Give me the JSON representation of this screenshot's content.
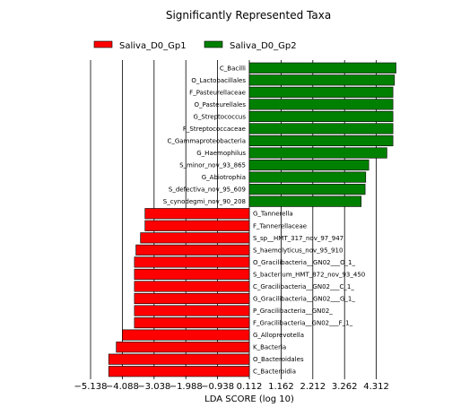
{
  "chart_data": {
    "type": "bar",
    "orientation": "horizontal",
    "title": "Significantly Represented Taxa",
    "xlabel": "LDA SCORE (log 10)",
    "ylabel": "",
    "xlim": [
      -5.138,
      5.362
    ],
    "xticks": [
      "-5.138",
      "-4.088",
      "-3.038",
      "-1.988",
      "-0.938",
      "0.112",
      "1.162",
      "2.212",
      "3.262",
      "4.312"
    ],
    "grid": "vertical lines",
    "legend_position": "top",
    "series": [
      {
        "name": "Saliva_D0_Gp1",
        "color": "#ff0000"
      },
      {
        "name": "Saliva_D0_Gp2",
        "color": "#008000"
      }
    ],
    "bars": [
      {
        "label": "C_Bacilli",
        "value": 4.85,
        "group": "Saliva_D0_Gp2"
      },
      {
        "label": "O_Lactobacillales",
        "value": 4.8,
        "group": "Saliva_D0_Gp2"
      },
      {
        "label": "F_Pasteurellaceae",
        "value": 4.75,
        "group": "Saliva_D0_Gp2"
      },
      {
        "label": "O_Pasteurellales",
        "value": 4.75,
        "group": "Saliva_D0_Gp2"
      },
      {
        "label": "G_Streptococcus",
        "value": 4.75,
        "group": "Saliva_D0_Gp2"
      },
      {
        "label": "F_Streptococcaceae",
        "value": 4.75,
        "group": "Saliva_D0_Gp2"
      },
      {
        "label": "C_Gammaproteobacteria",
        "value": 4.75,
        "group": "Saliva_D0_Gp2"
      },
      {
        "label": "G_Haemophilus",
        "value": 4.55,
        "group": "Saliva_D0_Gp2"
      },
      {
        "label": "S_minor_nov_93_865",
        "value": 3.95,
        "group": "Saliva_D0_Gp2"
      },
      {
        "label": "G_Abiotrophia",
        "value": 3.85,
        "group": "Saliva_D0_Gp2"
      },
      {
        "label": "S_defectiva_nov_95_609",
        "value": 3.83,
        "group": "Saliva_D0_Gp2"
      },
      {
        "label": "S_cynodegmi_nov_90_208",
        "value": 3.7,
        "group": "Saliva_D0_Gp2"
      },
      {
        "label": "G_Tannerella",
        "value": -3.45,
        "group": "Saliva_D0_Gp1"
      },
      {
        "label": "F_Tannerellaceae",
        "value": -3.45,
        "group": "Saliva_D0_Gp1"
      },
      {
        "label": "S_sp__HMT_317_nov_97_947",
        "value": -3.6,
        "group": "Saliva_D0_Gp1"
      },
      {
        "label": "S_haemolyticus_nov_95_910",
        "value": -3.75,
        "group": "Saliva_D0_Gp1"
      },
      {
        "label": "O_Gracilibacteria__GN02___O_1_",
        "value": -3.8,
        "group": "Saliva_D0_Gp1"
      },
      {
        "label": "S_bacterium_HMT_872_nov_93_450",
        "value": -3.8,
        "group": "Saliva_D0_Gp1"
      },
      {
        "label": "C_Gracilibacteria__GN02___C_1_",
        "value": -3.8,
        "group": "Saliva_D0_Gp1"
      },
      {
        "label": "G_Gracilibacteria__GN02___G_1_",
        "value": -3.8,
        "group": "Saliva_D0_Gp1"
      },
      {
        "label": "P_Gracilibacteria__GN02_",
        "value": -3.8,
        "group": "Saliva_D0_Gp1"
      },
      {
        "label": "F_Gracilibacteria__GN02___F_1_",
        "value": -3.8,
        "group": "Saliva_D0_Gp1"
      },
      {
        "label": "G_Alloprevotella",
        "value": -4.2,
        "group": "Saliva_D0_Gp1"
      },
      {
        "label": "K_Bacteria",
        "value": -4.4,
        "group": "Saliva_D0_Gp1"
      },
      {
        "label": "O_Bacteroidales",
        "value": -4.65,
        "group": "Saliva_D0_Gp1"
      },
      {
        "label": "C_Bacteroidia",
        "value": -4.65,
        "group": "Saliva_D0_Gp1"
      }
    ]
  }
}
